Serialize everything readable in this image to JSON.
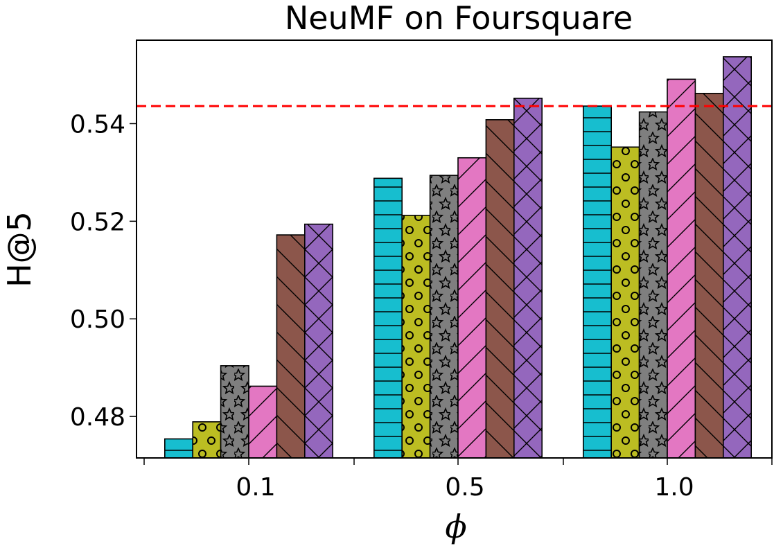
{
  "chart_data": {
    "type": "bar",
    "title": "NeuMF on Foursquare",
    "xlabel": "ϕ",
    "ylabel": "H@5",
    "categories": [
      "0.1",
      "0.5",
      "1.0"
    ],
    "ylim": [
      0.4715,
      0.5571
    ],
    "yticks": [
      0.48,
      0.5,
      0.52,
      0.54
    ],
    "ytick_labels": [
      "0.48",
      "0.50",
      "0.52",
      "0.54"
    ],
    "reference_line": {
      "value": 0.5436,
      "color": "#ff0000",
      "style": "dashed"
    },
    "grid": false,
    "series": [
      {
        "color": "#17becf",
        "hatch": "horizontal",
        "values": [
          0.4754,
          0.5288,
          0.5436
        ]
      },
      {
        "color": "#bcbd22",
        "hatch": "circles",
        "values": [
          0.4789,
          0.5212,
          0.5352
        ]
      },
      {
        "color": "#7f7f7f",
        "hatch": "stars",
        "values": [
          0.4904,
          0.5294,
          0.5424
        ]
      },
      {
        "color": "#e377c2",
        "hatch": "diagonal-forward",
        "values": [
          0.4862,
          0.533,
          0.5491
        ]
      },
      {
        "color": "#8c564b",
        "hatch": "diagonal-back",
        "values": [
          0.5172,
          0.5408,
          0.5462
        ]
      },
      {
        "color": "#9467bd",
        "hatch": "crosshatch",
        "values": [
          0.5194,
          0.5452,
          0.5537
        ]
      }
    ]
  }
}
